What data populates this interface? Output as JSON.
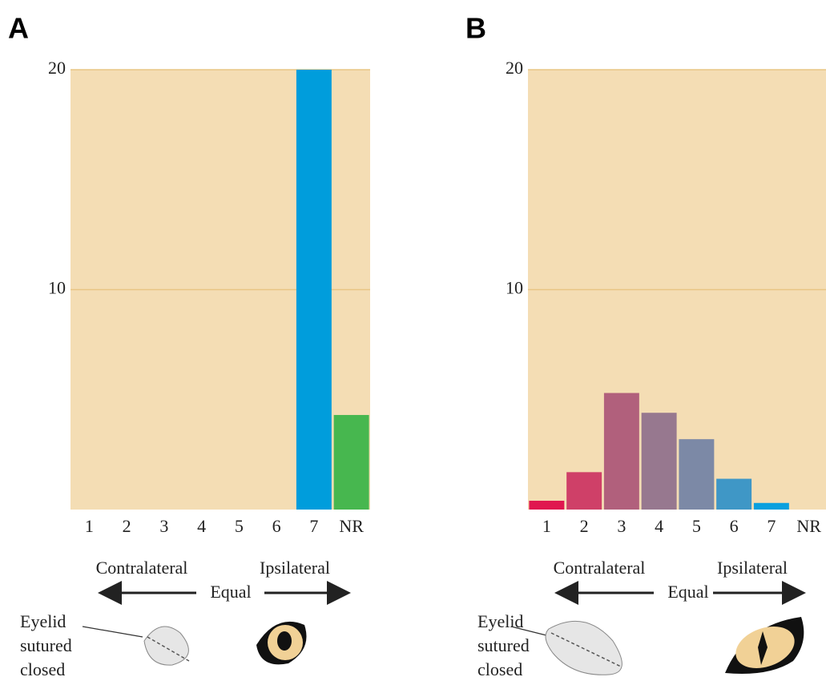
{
  "chart_data": [
    {
      "type": "bar",
      "panel_label": "A",
      "categories": [
        "1",
        "2",
        "3",
        "4",
        "5",
        "6",
        "7",
        "NR"
      ],
      "values": [
        0,
        0,
        0,
        0,
        0,
        0,
        20,
        4.3
      ],
      "colors": [
        "#009ddc",
        "#009ddc",
        "#009ddc",
        "#009ddc",
        "#009ddc",
        "#009ddc",
        "#009ddc",
        "#47b74f"
      ],
      "ylim": [
        0,
        20
      ],
      "yticks": [
        10,
        20
      ],
      "grid": true,
      "annotations": {
        "left": "Contralateral",
        "right": "Ipsilateral",
        "center": "Equal",
        "eyelid": [
          "Eyelid",
          "sutured",
          "closed"
        ]
      }
    },
    {
      "type": "bar",
      "panel_label": "B",
      "categories": [
        "1",
        "2",
        "3",
        "4",
        "5",
        "6",
        "7",
        "NR"
      ],
      "values": [
        0.4,
        1.7,
        5.3,
        4.4,
        3.2,
        1.4,
        0.3,
        0
      ],
      "colors": [
        "#e0174f",
        "#cf4068",
        "#b1607c",
        "#97788f",
        "#7c89a6",
        "#3f97c6",
        "#0aa0de",
        "#0aa0de"
      ],
      "ylim": [
        0,
        20
      ],
      "yticks": [
        10,
        20
      ],
      "grid": true,
      "annotations": {
        "left": "Contralateral",
        "right": "Ipsilateral",
        "center": "Equal",
        "eyelid": [
          "Eyelid",
          "sutured",
          "closed"
        ]
      }
    }
  ]
}
